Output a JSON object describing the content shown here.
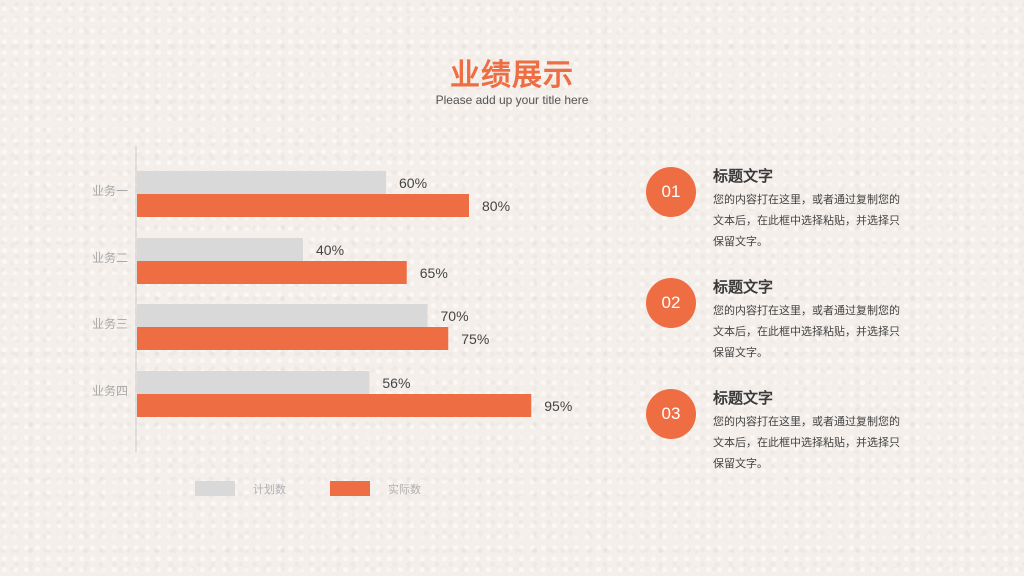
{
  "header": {
    "title": "业绩展示",
    "subtitle": "Please add up your title here"
  },
  "colors": {
    "accent": "#ee6d43",
    "plan": "#d9d9d9",
    "actual": "#ee6d43"
  },
  "chart_data": {
    "type": "bar",
    "orientation": "horizontal",
    "categories": [
      "业务一",
      "业务二",
      "业务三",
      "业务四"
    ],
    "series": [
      {
        "name": "计划数",
        "values": [
          60,
          40,
          70,
          56
        ],
        "labels": [
          "60%",
          "40%",
          "70%",
          "56%"
        ]
      },
      {
        "name": "实际数",
        "values": [
          80,
          65,
          75,
          95
        ],
        "labels": [
          "80%",
          "65%",
          "75%",
          "95%"
        ]
      }
    ],
    "xlim": [
      0,
      100
    ],
    "grid": false,
    "legend": "bottom"
  },
  "items": [
    {
      "num": "01",
      "heading": "标题文字",
      "text": "您的内容打在这里，或者通过复制您的文本后，在此框中选择粘贴，并选择只保留文字。"
    },
    {
      "num": "02",
      "heading": "标题文字",
      "text": "您的内容打在这里，或者通过复制您的文本后，在此框中选择粘贴，并选择只保留文字。"
    },
    {
      "num": "03",
      "heading": "标题文字",
      "text": "您的内容打在这里，或者通过复制您的文本后，在此框中选择粘贴，并选择只保留文字。"
    }
  ]
}
